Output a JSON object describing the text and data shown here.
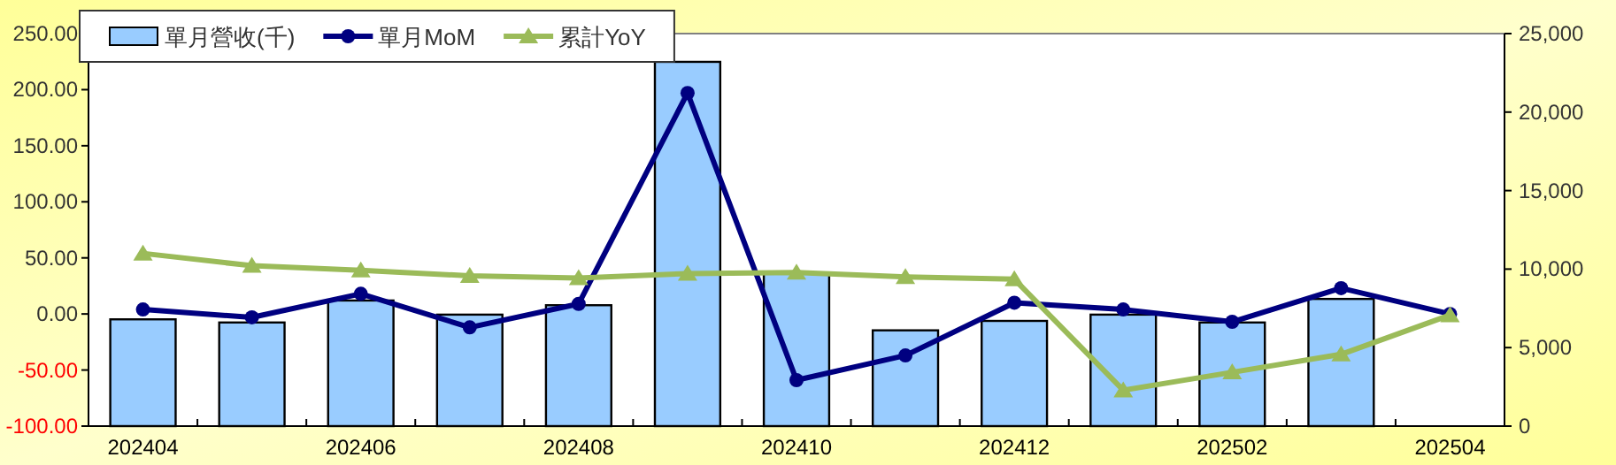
{
  "chart_data": {
    "type": "bar",
    "categories": [
      "202404",
      null,
      "202406",
      null,
      "202408",
      null,
      "202410",
      null,
      "202412",
      null,
      "202502",
      null,
      "202504"
    ],
    "series": [
      {
        "name": "單月營收(千)",
        "axis": "y2",
        "color": "#99ccff",
        "values": [
          6800,
          6600,
          8000,
          7100,
          7700,
          23200,
          9700,
          6100,
          6700,
          7100,
          6600,
          8100,
          null
        ]
      },
      {
        "name": "單月MoM",
        "type": "line",
        "marker": "circle",
        "color": "#000080",
        "values": [
          4,
          -3,
          18,
          -12,
          9,
          197,
          -59,
          -37,
          10,
          4,
          -7,
          23,
          0
        ]
      },
      {
        "name": "累計YoY",
        "type": "line",
        "marker": "triangle",
        "color": "#9bbb59",
        "values": [
          54,
          43,
          39,
          34,
          32,
          36,
          37,
          33,
          31,
          -68,
          -52,
          -36,
          -1
        ]
      }
    ],
    "ylim": [
      -100,
      250
    ],
    "yticks": [
      {
        "value": -100,
        "label": "-100.00"
      },
      {
        "value": -50,
        "label": "-50.00"
      },
      {
        "value": 0,
        "label": "0.00"
      },
      {
        "value": 50,
        "label": "50.00"
      },
      {
        "value": 100,
        "label": "100.00"
      },
      {
        "value": 150,
        "label": "150.00"
      },
      {
        "value": 200,
        "label": "200.00"
      },
      {
        "value": 250,
        "label": "250.00"
      }
    ],
    "y2lim": [
      0,
      25000
    ],
    "y2ticks": [
      0,
      {
        "value": 5000,
        "label": "5,000"
      },
      {
        "value": 10000,
        "label": "10,000"
      },
      {
        "value": 15000,
        "label": "15,000"
      },
      {
        "value": 20000,
        "label": "20,000"
      },
      {
        "value": 25000,
        "label": "25,000"
      }
    ],
    "grid": false,
    "legend": "top left"
  }
}
